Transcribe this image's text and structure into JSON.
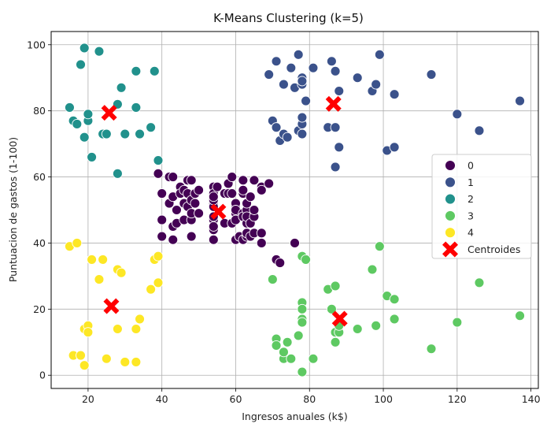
{
  "chart_data": {
    "type": "scatter",
    "title": "K-Means Clustering (k=5)",
    "xlabel": "Ingresos anuales (k$)",
    "ylabel": "Puntuacion de gastos (1-100)",
    "xlim": [
      10,
      142
    ],
    "ylim": [
      -4,
      104
    ],
    "xticks": [
      20,
      40,
      60,
      80,
      100,
      120,
      140
    ],
    "yticks": [
      0,
      20,
      40,
      60,
      80,
      100
    ],
    "grid": true,
    "legend_position": "center-right",
    "series": [
      {
        "name": "0",
        "color": "#440154",
        "points": [
          [
            39,
            61
          ],
          [
            40,
            55
          ],
          [
            40,
            47
          ],
          [
            40,
            42
          ],
          [
            42,
            60
          ],
          [
            42,
            52
          ],
          [
            43,
            54
          ],
          [
            43,
            60
          ],
          [
            43,
            45
          ],
          [
            43,
            41
          ],
          [
            44,
            50
          ],
          [
            44,
            46
          ],
          [
            45,
            57
          ],
          [
            45,
            55
          ],
          [
            46,
            52
          ],
          [
            46,
            56
          ],
          [
            46,
            47
          ],
          [
            47,
            59
          ],
          [
            47,
            55
          ],
          [
            47,
            51
          ],
          [
            48,
            47
          ],
          [
            48,
            59
          ],
          [
            48,
            42
          ],
          [
            48,
            49
          ],
          [
            48,
            53
          ],
          [
            49,
            52
          ],
          [
            49,
            55
          ],
          [
            50,
            49
          ],
          [
            50,
            56
          ],
          [
            54,
            47
          ],
          [
            54,
            52
          ],
          [
            54,
            57
          ],
          [
            54,
            51
          ],
          [
            54,
            55
          ],
          [
            54,
            41
          ],
          [
            54,
            44
          ],
          [
            54,
            53
          ],
          [
            54,
            54
          ],
          [
            54,
            48
          ],
          [
            54,
            45
          ],
          [
            55,
            57
          ],
          [
            57,
            46
          ],
          [
            57,
            55
          ],
          [
            58,
            58
          ],
          [
            58,
            55
          ],
          [
            59,
            60
          ],
          [
            59,
            55
          ],
          [
            59,
            46
          ],
          [
            60,
            51
          ],
          [
            60,
            41
          ],
          [
            60,
            52
          ],
          [
            60,
            49
          ],
          [
            60,
            50
          ],
          [
            60,
            47
          ],
          [
            61,
            42
          ],
          [
            61,
            42
          ],
          [
            62,
            49
          ],
          [
            62,
            41
          ],
          [
            62,
            48
          ],
          [
            62,
            59
          ],
          [
            62,
            55
          ],
          [
            62,
            56
          ],
          [
            63,
            42
          ],
          [
            63,
            50
          ],
          [
            63,
            46
          ],
          [
            63,
            43
          ],
          [
            63,
            48
          ],
          [
            63,
            52
          ],
          [
            64,
            54
          ],
          [
            64,
            42
          ],
          [
            64,
            46
          ],
          [
            65,
            48
          ],
          [
            65,
            50
          ],
          [
            65,
            43
          ],
          [
            65,
            59
          ],
          [
            67,
            43
          ],
          [
            67,
            57
          ],
          [
            67,
            56
          ],
          [
            67,
            40
          ],
          [
            69,
            58
          ],
          [
            71,
            35
          ],
          [
            72,
            34
          ],
          [
            76,
            40
          ]
        ]
      },
      {
        "name": "1",
        "color": "#3b528b",
        "points": [
          [
            69,
            91
          ],
          [
            70,
            77
          ],
          [
            71,
            95
          ],
          [
            71,
            75
          ],
          [
            71,
            75
          ],
          [
            72,
            71
          ],
          [
            73,
            88
          ],
          [
            73,
            73
          ],
          [
            74,
            72
          ],
          [
            75,
            93
          ],
          [
            76,
            87
          ],
          [
            77,
            97
          ],
          [
            77,
            74
          ],
          [
            78,
            90
          ],
          [
            78,
            88
          ],
          [
            78,
            76
          ],
          [
            78,
            89
          ],
          [
            78,
            78
          ],
          [
            78,
            73
          ],
          [
            79,
            83
          ],
          [
            81,
            93
          ],
          [
            85,
            75
          ],
          [
            86,
            95
          ],
          [
            87,
            63
          ],
          [
            87,
            75
          ],
          [
            87,
            92
          ],
          [
            88,
            86
          ],
          [
            88,
            69
          ],
          [
            93,
            90
          ],
          [
            97,
            86
          ],
          [
            98,
            88
          ],
          [
            99,
            97
          ],
          [
            101,
            68
          ],
          [
            103,
            85
          ],
          [
            103,
            69
          ],
          [
            113,
            91
          ],
          [
            120,
            79
          ],
          [
            126,
            74
          ],
          [
            137,
            83
          ]
        ]
      },
      {
        "name": "2",
        "color": "#21918c",
        "points": [
          [
            15,
            81
          ],
          [
            16,
            77
          ],
          [
            17,
            76
          ],
          [
            18,
            94
          ],
          [
            19,
            72
          ],
          [
            19,
            99
          ],
          [
            20,
            77
          ],
          [
            20,
            79
          ],
          [
            21,
            66
          ],
          [
            23,
            98
          ],
          [
            24,
            73
          ],
          [
            25,
            73
          ],
          [
            28,
            82
          ],
          [
            28,
            61
          ],
          [
            29,
            87
          ],
          [
            30,
            73
          ],
          [
            33,
            92
          ],
          [
            33,
            81
          ],
          [
            34,
            73
          ],
          [
            37,
            75
          ],
          [
            38,
            92
          ],
          [
            39,
            65
          ]
        ]
      },
      {
        "name": "3",
        "color": "#5ec962",
        "points": [
          [
            70,
            29
          ],
          [
            71,
            11
          ],
          [
            71,
            9
          ],
          [
            73,
            5
          ],
          [
            73,
            7
          ],
          [
            74,
            10
          ],
          [
            75,
            5
          ],
          [
            77,
            12
          ],
          [
            78,
            22
          ],
          [
            78,
            20
          ],
          [
            78,
            17
          ],
          [
            78,
            16
          ],
          [
            78,
            1
          ],
          [
            78,
            36
          ],
          [
            79,
            35
          ],
          [
            81,
            5
          ],
          [
            85,
            26
          ],
          [
            86,
            20
          ],
          [
            87,
            27
          ],
          [
            87,
            13
          ],
          [
            87,
            10
          ],
          [
            88,
            13
          ],
          [
            88,
            15
          ],
          [
            93,
            14
          ],
          [
            97,
            32
          ],
          [
            98,
            15
          ],
          [
            99,
            39
          ],
          [
            101,
            24
          ],
          [
            103,
            17
          ],
          [
            103,
            23
          ],
          [
            113,
            8
          ],
          [
            120,
            16
          ],
          [
            126,
            28
          ],
          [
            137,
            18
          ]
        ]
      },
      {
        "name": "4",
        "color": "#fde725",
        "points": [
          [
            15,
            39
          ],
          [
            16,
            6
          ],
          [
            17,
            40
          ],
          [
            18,
            6
          ],
          [
            19,
            3
          ],
          [
            19,
            14
          ],
          [
            20,
            15
          ],
          [
            20,
            13
          ],
          [
            21,
            35
          ],
          [
            23,
            29
          ],
          [
            24,
            35
          ],
          [
            25,
            5
          ],
          [
            28,
            14
          ],
          [
            28,
            32
          ],
          [
            29,
            31
          ],
          [
            30,
            4
          ],
          [
            33,
            4
          ],
          [
            33,
            14
          ],
          [
            34,
            17
          ],
          [
            37,
            26
          ],
          [
            38,
            35
          ],
          [
            39,
            36
          ],
          [
            39,
            28
          ]
        ]
      }
    ],
    "centroids": {
      "name": "Centroides",
      "color": "#ff0000",
      "marker": "X",
      "points": [
        [
          55.3,
          49.5
        ],
        [
          86.5,
          82.1
        ],
        [
          25.7,
          79.4
        ],
        [
          88.2,
          17.1
        ],
        [
          26.3,
          20.9
        ]
      ]
    }
  }
}
